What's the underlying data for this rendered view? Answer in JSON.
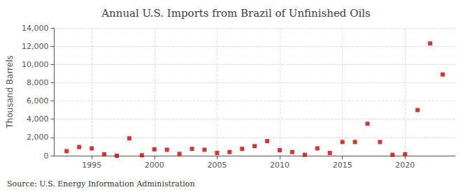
{
  "chart_data": {
    "type": "scatter",
    "title": "Annual U.S. Imports from Brazil of Unfinished Oils",
    "ylabel": "Thousand Barrels",
    "annotations": [
      "Source: U.S. Energy Information Administration"
    ],
    "x": [
      1993,
      1994,
      1995,
      1996,
      1997,
      1998,
      1999,
      2000,
      2001,
      2002,
      2003,
      2004,
      2005,
      2006,
      2007,
      2008,
      2009,
      2010,
      2011,
      2012,
      2013,
      2014,
      2015,
      2016,
      2017,
      2018,
      2019,
      2020,
      2021,
      2022,
      2023
    ],
    "values": [
      500,
      950,
      800,
      150,
      0,
      1900,
      50,
      700,
      650,
      200,
      750,
      650,
      300,
      400,
      750,
      1050,
      1600,
      600,
      400,
      100,
      800,
      300,
      1500,
      1500,
      3500,
      1500,
      100,
      150,
      5000,
      12300,
      8900
    ],
    "color": "#cc0000",
    "marker": "square",
    "xlim": [
      1992,
      2024
    ],
    "xticks": [
      1995,
      2000,
      2005,
      2010,
      2015,
      2020
    ],
    "ylim": [
      0,
      14000
    ],
    "yticks": [
      0,
      {
        "value": 2000,
        "label": "2,000"
      },
      {
        "value": 4000,
        "label": "4,000"
      },
      {
        "value": 6000,
        "label": "6,000"
      },
      {
        "value": 8000,
        "label": "8,000"
      },
      {
        "value": 10000,
        "label": "10,000"
      },
      {
        "value": 12000,
        "label": "12,000"
      },
      {
        "value": 14000,
        "label": "14,000"
      }
    ],
    "grid": true
  }
}
